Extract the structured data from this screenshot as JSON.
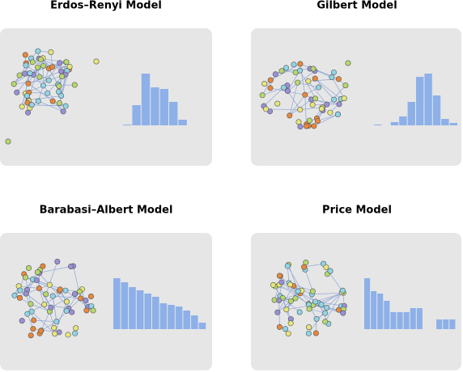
{
  "chart_data": [
    {
      "type": "bar",
      "title": "Erdos–Renyi Model",
      "color": "#8eb0e8",
      "values": [
        1,
        25,
        64,
        47,
        45,
        29,
        7
      ]
    },
    {
      "type": "bar",
      "title": "Gilbert Model",
      "color": "#8eb0e8",
      "values": [
        1,
        0,
        4,
        11,
        29,
        60,
        64,
        37,
        8,
        3
      ]
    },
    {
      "type": "bar",
      "title": "Barabasi–Albert Model",
      "color": "#8eb0e8",
      "values": [
        63,
        58,
        52,
        48,
        44,
        40,
        32,
        30,
        28,
        23,
        17,
        8
      ]
    },
    {
      "type": "bar",
      "title": "Price Model",
      "color": "#8eb0e8",
      "values": [
        63,
        47,
        44,
        35,
        21,
        21,
        21,
        26,
        26,
        0,
        0,
        12,
        12,
        12
      ]
    }
  ]
}
